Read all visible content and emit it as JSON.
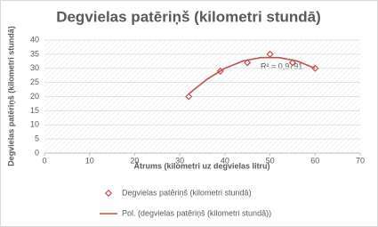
{
  "chart_data": {
    "type": "scatter",
    "title": "Degvielas patēriņš (kilometri stundā)",
    "x_label": "Ātrums (kilometri uz degvielas litru)",
    "y_label": "Degvielas patēriņš (kilometri stundā)",
    "series": [
      {
        "name": "Degvielas patēriņš (kilometri stundā)",
        "color": "#c0504d",
        "marker": "diamond",
        "x": [
          32,
          39,
          45,
          50,
          55,
          60
        ],
        "values": [
          20,
          29,
          32,
          35,
          32,
          30
        ]
      },
      {
        "name": "Pol. (degvielas patēriņš (kilometri stundā))",
        "color": "#c0504d",
        "marker": "line",
        "x": [
          32,
          36,
          40,
          44,
          48,
          52,
          56,
          60
        ],
        "values": [
          21,
          26.1,
          30,
          32.6,
          33.8,
          33.8,
          32.6,
          30
        ]
      }
    ],
    "annotation": "R² = 0,9791",
    "xlim": [
      0,
      70
    ],
    "xticks": [
      0,
      10,
      20,
      30,
      40,
      50,
      60,
      70
    ],
    "ylim": [
      0,
      40
    ],
    "yticks": [
      0,
      5,
      10,
      15,
      20,
      25,
      30,
      35,
      40
    ],
    "grid": true
  }
}
